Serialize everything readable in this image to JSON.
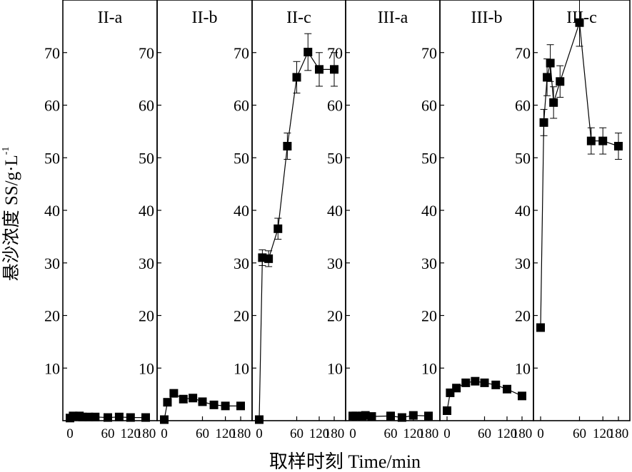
{
  "chart_data": {
    "type": "line",
    "ylabel": "悬沙浓度 SS/g·L",
    "ylabel_superscript": "-1",
    "xlabel": "取样时刻 Time/min",
    "ylim": [
      0,
      80
    ],
    "y_ticks": [
      10,
      20,
      30,
      40,
      50,
      60,
      70
    ],
    "x_ticks": [
      0,
      60,
      120,
      180
    ],
    "x_tick_labels": [
      "0",
      "60",
      "120",
      "180"
    ],
    "panels": [
      {
        "label": "II-a",
        "x": [
          0,
          5,
          15,
          20,
          30,
          40,
          60,
          90,
          120,
          180
        ],
        "y": [
          0.5,
          0.9,
          0.9,
          0.7,
          0.7,
          0.7,
          0.6,
          0.7,
          0.6,
          0.6
        ],
        "err": [
          0,
          0,
          0,
          0,
          0,
          0,
          0,
          0,
          0,
          0
        ]
      },
      {
        "label": "II-b",
        "x": [
          0,
          5,
          15,
          30,
          45,
          60,
          90,
          120,
          180
        ],
        "y": [
          0.2,
          3.5,
          5.2,
          4.1,
          4.3,
          3.6,
          3.0,
          2.8,
          2.8
        ],
        "err": [
          0,
          0,
          0,
          0,
          0,
          0,
          0,
          0,
          0
        ]
      },
      {
        "label": "II-c",
        "x": [
          0,
          5,
          15,
          30,
          45,
          60,
          90,
          120,
          180
        ],
        "y": [
          0.2,
          31.0,
          30.8,
          36.5,
          52.2,
          65.3,
          70.1,
          66.8,
          66.8
        ],
        "err": [
          0,
          1.5,
          1.5,
          2.0,
          2.5,
          3.0,
          3.5,
          3.2,
          3.2
        ]
      },
      {
        "label": "III-a",
        "x": [
          0,
          5,
          15,
          20,
          30,
          60,
          90,
          120,
          180
        ],
        "y": [
          0.9,
          0.9,
          0.9,
          1.0,
          0.8,
          0.9,
          0.6,
          1.0,
          0.9
        ],
        "err": [
          0,
          0,
          0,
          0,
          0,
          0,
          0,
          0,
          0
        ]
      },
      {
        "label": "III-b",
        "x": [
          0,
          5,
          15,
          30,
          45,
          60,
          90,
          120,
          180
        ],
        "y": [
          1.9,
          5.3,
          6.2,
          7.2,
          7.5,
          7.2,
          6.8,
          6.0,
          4.7
        ],
        "err": [
          0,
          0,
          0,
          0,
          0,
          0,
          0,
          0,
          0
        ]
      },
      {
        "label": "III-c",
        "x": [
          0,
          5,
          10,
          15,
          20,
          30,
          60,
          90,
          120,
          180
        ],
        "y": [
          17.7,
          56.7,
          65.3,
          68.0,
          60.5,
          64.5,
          75.7,
          53.2,
          53.2,
          52.2
        ],
        "err": [
          0,
          2.5,
          3.5,
          3.5,
          3.0,
          3.0,
          4.5,
          2.5,
          2.5,
          2.5
        ]
      }
    ]
  }
}
